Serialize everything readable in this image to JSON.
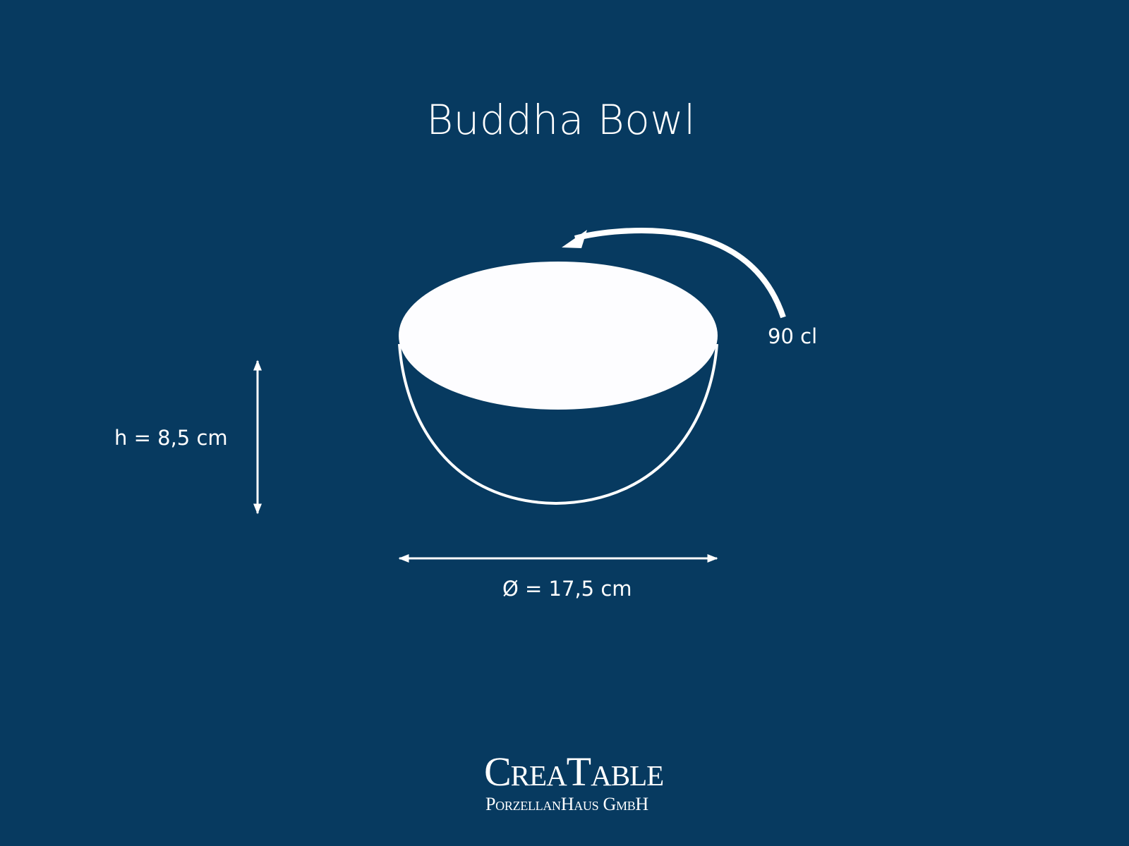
{
  "title": "Buddha Bowl",
  "dimensions": {
    "volume": "90 cl",
    "height": "h = 8,5 cm",
    "diameter": "Ø = 17,5 cm"
  },
  "logo": {
    "brand": "CreaTable",
    "company": "PorzellanHaus GmbH"
  },
  "colors": {
    "background": "#073a60",
    "foreground": "#ffffff"
  }
}
